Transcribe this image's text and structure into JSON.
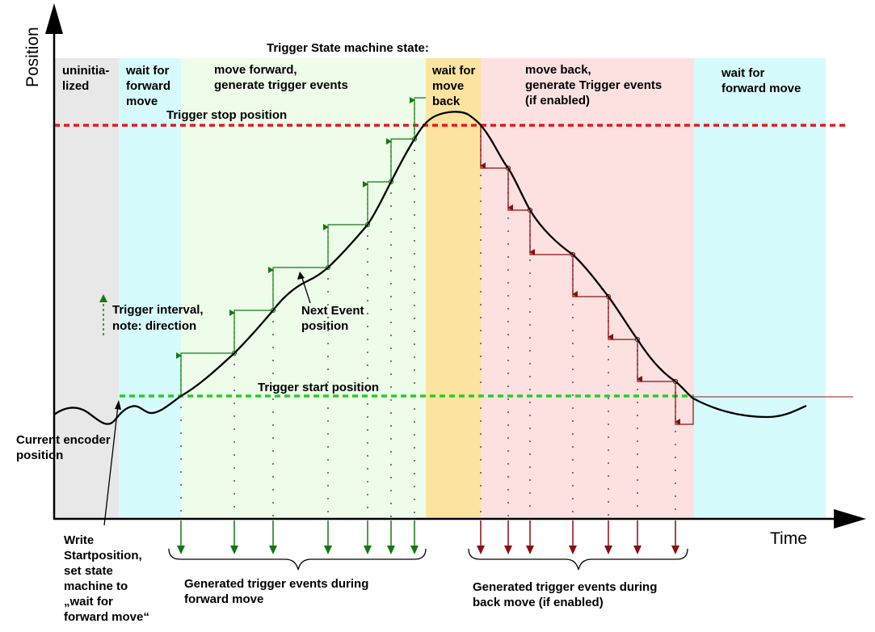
{
  "axes": {
    "y_title": "Position",
    "x_title": "Time"
  },
  "header": "Trigger State machine state:",
  "states": {
    "uninitialized": [
      "uninitia-",
      "lized"
    ],
    "wait_forward_1": [
      "wait for",
      "forward",
      "move"
    ],
    "move_forward": [
      "move forward,",
      "generate trigger events"
    ],
    "wait_back": [
      "wait for",
      "move",
      "back"
    ],
    "move_back": [
      "move back,",
      "generate Trigger events",
      "(if enabled)"
    ],
    "wait_forward_2": [
      "wait for",
      "forward move"
    ]
  },
  "lines": {
    "stop_label": "Trigger stop position",
    "start_label": "Trigger start position"
  },
  "notes": {
    "interval": [
      "Trigger interval,",
      "note: direction"
    ],
    "next_event": [
      "Next Event",
      "position"
    ],
    "encoder": [
      "Current encoder",
      "position"
    ],
    "write_start": [
      "Write",
      "Startposition,",
      "set state",
      "machine to",
      "„wait for",
      "forward move“"
    ]
  },
  "bottom": {
    "forward": [
      "Generated trigger events during",
      "forward move"
    ],
    "back": [
      "Generated trigger events during",
      "back move (if enabled)"
    ]
  },
  "colors": {
    "uninitialized": "#e8e8e8",
    "wait_forward": "#d6fbfd",
    "move_forward": "#eefde9",
    "wait_back": "#fde3a0",
    "move_back": "#fde1e1",
    "stop_line": "#e8171c",
    "start_line": "#22d120",
    "forward_event": "#117a11",
    "back_event": "#8b0e0e"
  }
}
